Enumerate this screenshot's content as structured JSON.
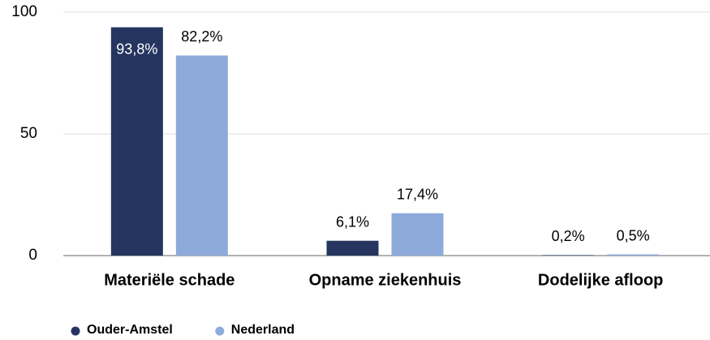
{
  "chart_data": {
    "type": "bar",
    "categories": [
      "Materiële schade",
      "Opname ziekenhuis",
      "Dodelijke afloop"
    ],
    "series": [
      {
        "name": "Ouder-Amstel",
        "color": "#253560",
        "values": [
          93.8,
          6.1,
          0.2
        ],
        "value_labels": [
          "93,8%",
          "6,1%",
          "0,2%"
        ]
      },
      {
        "name": "Nederland",
        "color": "#8eaadb",
        "values": [
          82.2,
          17.4,
          0.5
        ],
        "value_labels": [
          "82,2%",
          "17,4%",
          "0,5%"
        ]
      }
    ],
    "ylim": [
      0,
      100
    ],
    "yticks": [
      0,
      50,
      100
    ],
    "grid": true,
    "legend": "bottom-left"
  }
}
